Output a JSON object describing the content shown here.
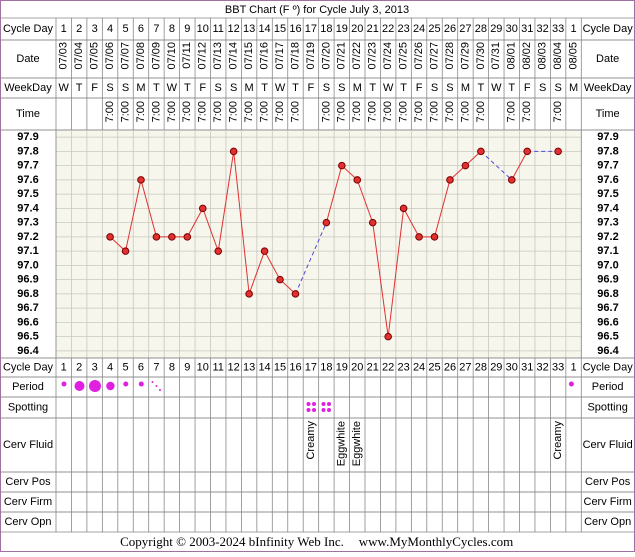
{
  "title": "BBT Chart (F º) for Cycle July 3, 2013",
  "row_labels": {
    "cycle_day": "Cycle Day",
    "date": "Date",
    "weekday": "WeekDay",
    "time": "Time",
    "period": "Period",
    "spotting": "Spotting",
    "cerv_fluid": "Cerv Fluid",
    "cerv_pos": "Cerv Pos",
    "cerv_firm": "Cerv Firm",
    "cerv_opn": "Cerv Opn"
  },
  "chart_data": {
    "type": "line",
    "categories": [
      1,
      2,
      3,
      4,
      5,
      6,
      7,
      8,
      9,
      10,
      11,
      12,
      13,
      14,
      15,
      16,
      17,
      18,
      19,
      20,
      21,
      22,
      23,
      24,
      25,
      26,
      27,
      28,
      29,
      30,
      31,
      32,
      33,
      1
    ],
    "dates": [
      "07/03",
      "07/04",
      "07/05",
      "07/06",
      "07/07",
      "07/08",
      "07/09",
      "07/10",
      "07/11",
      "07/12",
      "07/13",
      "07/14",
      "07/15",
      "07/16",
      "07/17",
      "07/18",
      "07/19",
      "07/20",
      "07/21",
      "07/22",
      "07/23",
      "07/24",
      "07/25",
      "07/26",
      "07/27",
      "07/28",
      "07/29",
      "07/30",
      "07/31",
      "08/01",
      "08/02",
      "08/03",
      "08/04",
      "08/05"
    ],
    "weekdays": [
      "W",
      "T",
      "F",
      "S",
      "S",
      "M",
      "T",
      "W",
      "T",
      "F",
      "S",
      "S",
      "M",
      "T",
      "W",
      "T",
      "F",
      "S",
      "S",
      "M",
      "T",
      "W",
      "T",
      "F",
      "S",
      "S",
      "M",
      "T",
      "W",
      "T",
      "F",
      "S",
      "S",
      "M"
    ],
    "times": [
      null,
      null,
      null,
      "7:00",
      "7:00",
      "7:00",
      "7:00",
      "7:00",
      "7:00",
      "7:00",
      "7:00",
      "7:00",
      "7:00",
      "7:00",
      "7:00",
      "7:00",
      null,
      "7:00",
      "7:00",
      "7:00",
      "7:00",
      "7:00",
      "7:00",
      "7:00",
      "7:00",
      "7:00",
      "7:00",
      "7:00",
      null,
      "7:00",
      "7:00",
      null,
      "7:00",
      null
    ],
    "cerv_fluid": [
      null,
      null,
      null,
      null,
      null,
      null,
      null,
      null,
      null,
      null,
      null,
      null,
      null,
      null,
      null,
      null,
      "Creamy",
      null,
      "Eggwhite",
      "Eggwhite",
      null,
      null,
      null,
      null,
      null,
      null,
      null,
      null,
      null,
      null,
      null,
      null,
      "Creamy",
      null
    ],
    "series": [
      {
        "color": "#e03030",
        "values": [
          null,
          null,
          null,
          97.2,
          97.1,
          97.6,
          97.2,
          97.2,
          97.2,
          97.4,
          97.1,
          97.8,
          96.8,
          97.1,
          96.9,
          96.8,
          null,
          97.3,
          97.7,
          97.6,
          97.3,
          96.5,
          97.4,
          97.2,
          97.2,
          97.6,
          97.7,
          97.8,
          null,
          97.6,
          97.8,
          null,
          97.8,
          null
        ]
      }
    ],
    "ylim": [
      96.35,
      97.95
    ],
    "yticks": [
      97.9,
      97.8,
      97.7,
      97.6,
      97.5,
      97.4,
      97.3,
      97.2,
      97.1,
      {
        "value": 97,
        "label": "97.0"
      },
      96.9,
      96.8,
      96.7,
      96.6,
      96.5,
      96.4
    ],
    "grid": true,
    "gap_color": "#4a4ae0"
  },
  "copyright": "Copyright © 2003-2024 bInfinity Web Inc.",
  "site": "www.MyMonthlyCycles.com"
}
